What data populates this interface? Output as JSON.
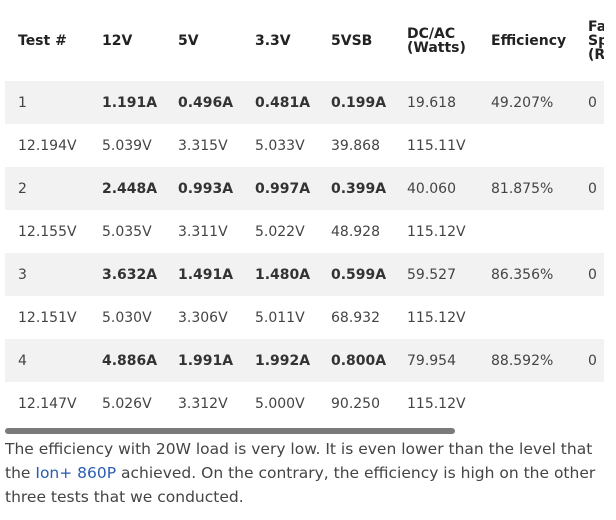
{
  "table": {
    "header": [
      "Test #",
      "12V",
      "5V",
      "3.3V",
      "5VSB",
      "DC/AC (Watts)",
      "Efficiency",
      "Fan Speed (RPM)"
    ],
    "rows": [
      [
        "1",
        "1.191A",
        "0.496A",
        "0.481A",
        "0.199A",
        "19.618",
        "49.207%",
        "0"
      ],
      [
        "12.194V",
        "5.039V",
        "3.315V",
        "5.033V",
        "39.868",
        "115.11V"
      ],
      [
        "2",
        "2.448A",
        "0.993A",
        "0.997A",
        "0.399A",
        "40.060",
        "81.875%",
        "0"
      ],
      [
        "12.155V",
        "5.035V",
        "3.311V",
        "5.022V",
        "48.928",
        "115.12V"
      ],
      [
        "3",
        "3.632A",
        "1.491A",
        "1.480A",
        "0.599A",
        "59.527",
        "86.356%",
        "0"
      ],
      [
        "12.151V",
        "5.030V",
        "3.306V",
        "5.011V",
        "68.932",
        "115.12V"
      ],
      [
        "4",
        "4.886A",
        "1.991A",
        "1.992A",
        "0.800A",
        "79.954",
        "88.592%",
        "0"
      ],
      [
        "12.147V",
        "5.026V",
        "3.312V",
        "5.000V",
        "90.250",
        "115.12V"
      ]
    ]
  },
  "paragraph": {
    "before": "The efficiency with 20W load is very low. It is even lower than the level that the ",
    "link": "Ion+ 860P",
    "after": " achieved. On the contrary, the efficiency is high on the other three tests that we conducted."
  }
}
